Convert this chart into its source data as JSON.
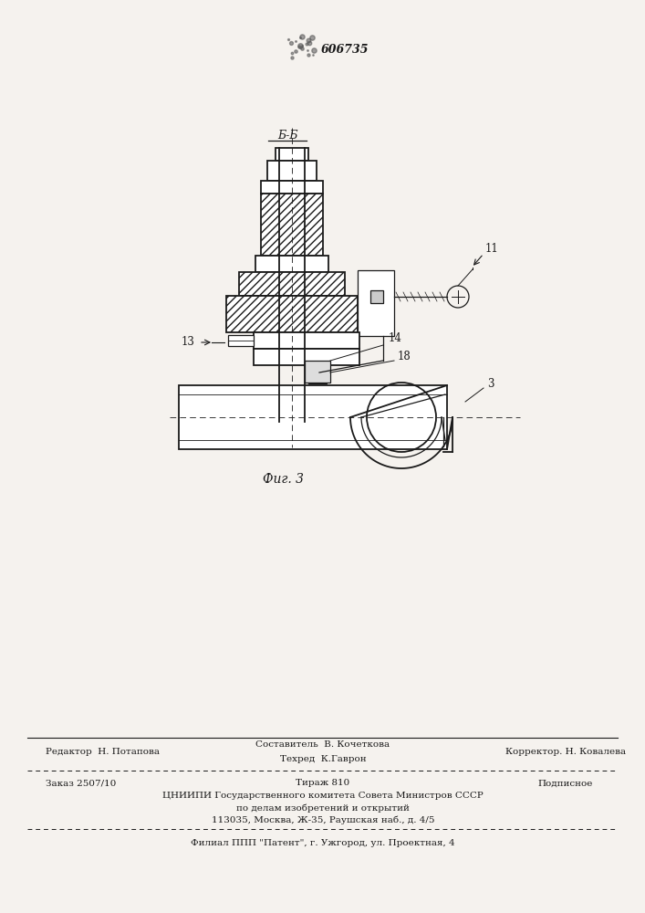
{
  "bg_color": "#f5f2ee",
  "line_color": "#1a1a1a",
  "patent_number": "606735",
  "fig_label": "Фиг. 3",
  "section_label": "Б-Б",
  "footer": {
    "sostavitel": "Составитель  В. Кочеткова",
    "editor": "Редактор  Н. Потапова",
    "tekhred": "Техред  К.Гаврон",
    "korrektor": "Корректор. Н. Ковалева",
    "zakaz": "Заказ 2507/10",
    "tirazh": "Тираж 810",
    "podpisnoe": "Подписное",
    "cniip1": "ЦНИИПИ Государственного комитета Совета Министров СССР",
    "cniip2": "по делам изобретений и открытий",
    "cniip3": "113035, Москва, Ж-35, Раушская наб., д. 4/5",
    "filial": "Филиал ППП \"Патент\", г. Ужгород, ул. Проектная, 4"
  }
}
